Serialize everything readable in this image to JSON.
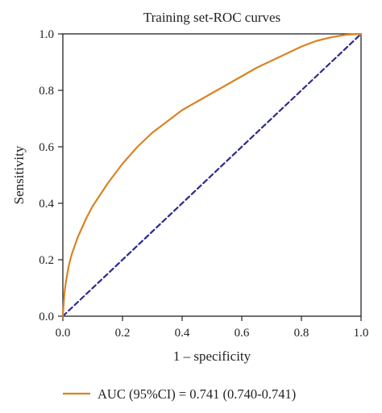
{
  "chart_data": {
    "type": "line",
    "title": "Training set-ROC curves",
    "xlabel": "1 – specificity",
    "ylabel": "Sensitivity",
    "xlim": [
      0.0,
      1.0
    ],
    "ylim": [
      0.0,
      1.0
    ],
    "xticks": [
      "0.0",
      "0.2",
      "0.4",
      "0.6",
      "0.8",
      "1.0"
    ],
    "yticks": [
      "0.0",
      "0.2",
      "0.4",
      "0.6",
      "0.8",
      "1.0"
    ],
    "grid": false,
    "legend_position": "bottom",
    "series": [
      {
        "name": "AUC (95%CI) = 0.741 (0.740-0.741)",
        "color": "#d98421",
        "style": "solid",
        "x": [
          0.0,
          0.005,
          0.01,
          0.02,
          0.03,
          0.05,
          0.08,
          0.1,
          0.15,
          0.2,
          0.25,
          0.3,
          0.35,
          0.4,
          0.45,
          0.5,
          0.55,
          0.6,
          0.65,
          0.7,
          0.75,
          0.8,
          0.85,
          0.9,
          0.95,
          1.0
        ],
        "y": [
          0.0,
          0.08,
          0.12,
          0.18,
          0.22,
          0.28,
          0.35,
          0.39,
          0.47,
          0.54,
          0.6,
          0.65,
          0.69,
          0.73,
          0.76,
          0.79,
          0.82,
          0.85,
          0.88,
          0.905,
          0.93,
          0.955,
          0.975,
          0.988,
          0.997,
          1.0
        ]
      },
      {
        "name": "",
        "color": "#2b2a8f",
        "style": "dashed",
        "x": [
          0.0,
          1.0
        ],
        "y": [
          0.0,
          1.0
        ]
      }
    ]
  }
}
